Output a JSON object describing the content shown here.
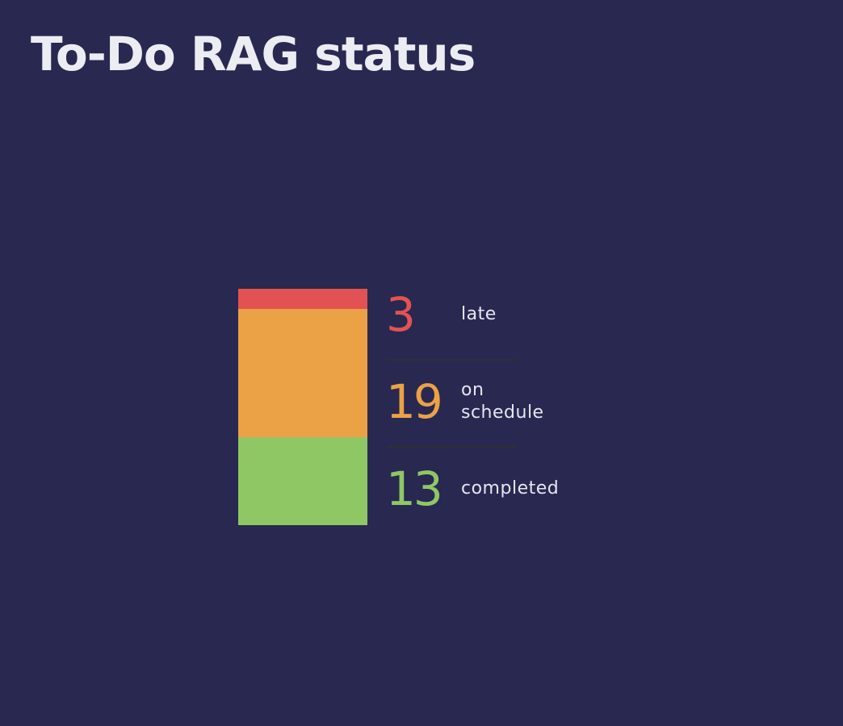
{
  "title": "To-Do RAG status",
  "chart_data": {
    "type": "bar",
    "stacked": true,
    "orientation": "vertical",
    "title": "To-Do RAG status",
    "categories": [
      "late",
      "on\nschedule",
      "completed"
    ],
    "values": [
      3,
      19,
      13
    ],
    "colors": [
      "#e35252",
      "#eba146",
      "#8fc764"
    ],
    "legend": "right"
  },
  "colors": {
    "background": "#282851",
    "title": "#ececf3",
    "label": "#e6e6ef",
    "divider": "#303033"
  }
}
